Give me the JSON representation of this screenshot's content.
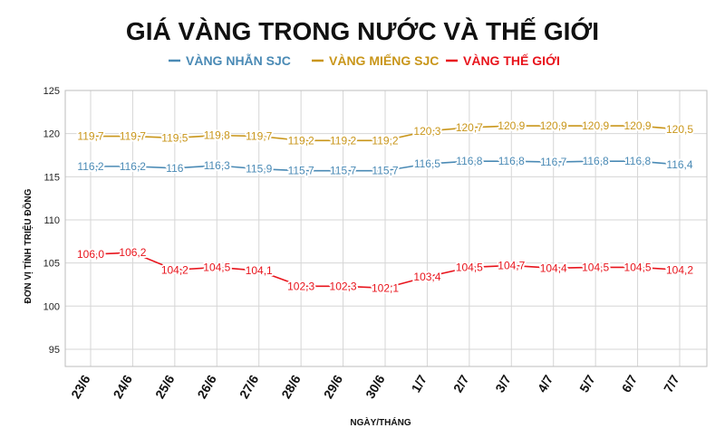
{
  "chart_data": {
    "type": "line",
    "title": "GIÁ VÀNG TRONG NƯỚC VÀ THẾ GIỚI",
    "xlabel": "NGÀY/THÁNG",
    "ylabel": "ĐƠN VỊ TÍNH TRIỆU ĐỒNG",
    "categories": [
      "23/6",
      "24/6",
      "25/6",
      "26/6",
      "27/6",
      "28/6",
      "29/6",
      "30/6",
      "1/7",
      "2/7",
      "3/7",
      "4/7",
      "5/7",
      "6/7",
      "7/7"
    ],
    "ylim": [
      93,
      125
    ],
    "yticks": [
      95,
      100,
      105,
      110,
      115,
      120,
      125
    ],
    "grid": true,
    "legend_position": "top",
    "series": [
      {
        "name": "VÀNG NHẪN SJC",
        "color": "#4a8ab5",
        "values": [
          116.2,
          116.2,
          116.0,
          116.3,
          115.9,
          115.7,
          115.7,
          115.7,
          116.5,
          116.8,
          116.8,
          116.7,
          116.8,
          116.8,
          116.4
        ],
        "labels": [
          "116,2",
          "116,2",
          "116",
          "116,3",
          "115,9",
          "115,7",
          "115,7",
          "115,7",
          "116,5",
          "116,8",
          "116,8",
          "116,7",
          "116,8",
          "116,8",
          "116,4"
        ]
      },
      {
        "name": "VÀNG MIẾNG SJC",
        "color": "#c9961a",
        "values": [
          119.7,
          119.7,
          119.5,
          119.8,
          119.7,
          119.2,
          119.2,
          119.2,
          120.3,
          120.7,
          120.9,
          120.9,
          120.9,
          120.9,
          120.5
        ],
        "labels": [
          "119,7",
          "119,7",
          "119,5",
          "119,8",
          "119,7",
          "119,2",
          "119,2",
          "119,2",
          "120,3",
          "120,7",
          "120,9",
          "120,9",
          "120,9",
          "120,9",
          "120,5"
        ]
      },
      {
        "name": "VÀNG THẾ GIỚI",
        "color": "#e8141c",
        "values": [
          106.0,
          106.2,
          104.2,
          104.5,
          104.1,
          102.3,
          102.3,
          102.1,
          103.4,
          104.5,
          104.7,
          104.4,
          104.5,
          104.5,
          104.2
        ],
        "labels": [
          "106,0",
          "106,2",
          "104,2",
          "104,5",
          "104,1",
          "102,3",
          "102,3",
          "102,1",
          "103,4",
          "104,5",
          "104,7",
          "104,4",
          "104,5",
          "104,5",
          "104,2"
        ]
      }
    ]
  }
}
